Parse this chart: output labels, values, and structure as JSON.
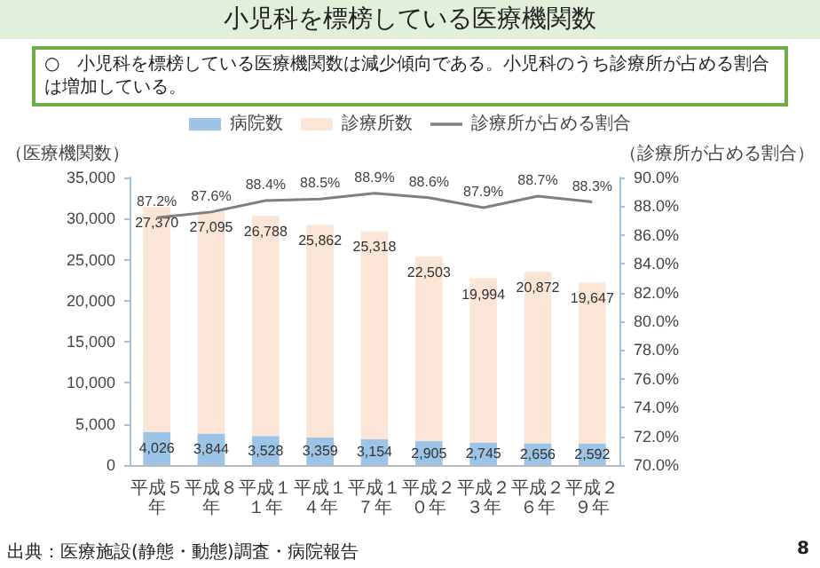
{
  "chart_data": {
    "type": "bar",
    "title": "小児科を標榜している医療機関数",
    "subtitle": "○　小児科を標榜している医療機関数は減少傾向である。小児科のうち診療所が占める割合は増加している。",
    "ylabel": "（医療機関数）",
    "y2label": "（診療所が占める割合）",
    "categories": [
      "平成５年",
      "平成８年",
      "平成１１年",
      "平成１４年",
      "平成１７年",
      "平成２０年",
      "平成２３年",
      "平成２６年",
      "平成２９年"
    ],
    "stacked": true,
    "series": [
      {
        "name": "病院数",
        "color": "#9dc3e6",
        "values": [
          4026,
          3844,
          3528,
          3359,
          3154,
          2905,
          2745,
          2656,
          2592
        ],
        "value_labels": [
          "4,026",
          "3,844",
          "3,528",
          "3,359",
          "3,154",
          "2,905",
          "2,745",
          "2,656",
          "2,592"
        ]
      },
      {
        "name": "診療所数",
        "color": "#fbe5d6",
        "values": [
          27370,
          27095,
          26788,
          25862,
          25318,
          22503,
          19994,
          20872,
          19647
        ],
        "value_labels": [
          "27,370",
          "27,095",
          "26,788",
          "25,862",
          "25,318",
          "22,503",
          "19,994",
          "20,872",
          "19,647"
        ]
      },
      {
        "name": "診療所が占める割合",
        "type": "line",
        "axis": "y2",
        "color": "#7f7f7f",
        "marker": "none",
        "values": [
          87.2,
          87.6,
          88.4,
          88.5,
          88.9,
          88.6,
          87.9,
          88.7,
          88.3
        ],
        "value_labels": [
          "87.2%",
          "87.6%",
          "88.4%",
          "88.5%",
          "88.9%",
          "88.6%",
          "87.9%",
          "88.7%",
          "88.3%"
        ]
      }
    ],
    "ylim": [
      0,
      35000
    ],
    "yticks": [
      0,
      {
        "value": 5000,
        "label": "5,000"
      },
      {
        "value": 10000,
        "label": "10,000"
      },
      {
        "value": 15000,
        "label": "15,000"
      },
      {
        "value": 20000,
        "label": "20,000"
      },
      {
        "value": 25000,
        "label": "25,000"
      },
      {
        "value": 30000,
        "label": "30,000"
      },
      {
        "value": 35000,
        "label": "35,000"
      }
    ],
    "y2lim": [
      70,
      90
    ],
    "y2ticks": [
      {
        "value": 70,
        "label": "70.0%"
      },
      {
        "value": 72,
        "label": "72.0%"
      },
      {
        "value": 74,
        "label": "74.0%"
      },
      {
        "value": 76,
        "label": "76.0%"
      },
      {
        "value": 78,
        "label": "78.0%"
      },
      {
        "value": 80,
        "label": "80.0%"
      },
      {
        "value": 82,
        "label": "82.0%"
      },
      {
        "value": 84,
        "label": "84.0%"
      },
      {
        "value": 86,
        "label": "86.0%"
      },
      {
        "value": 88,
        "label": "88.0%"
      },
      {
        "value": 90,
        "label": "90.0%"
      }
    ],
    "grid": false,
    "legend": "top",
    "annotations": [
      "出典：医療施設(静態・動態)調査・病院報告",
      "8"
    ]
  }
}
